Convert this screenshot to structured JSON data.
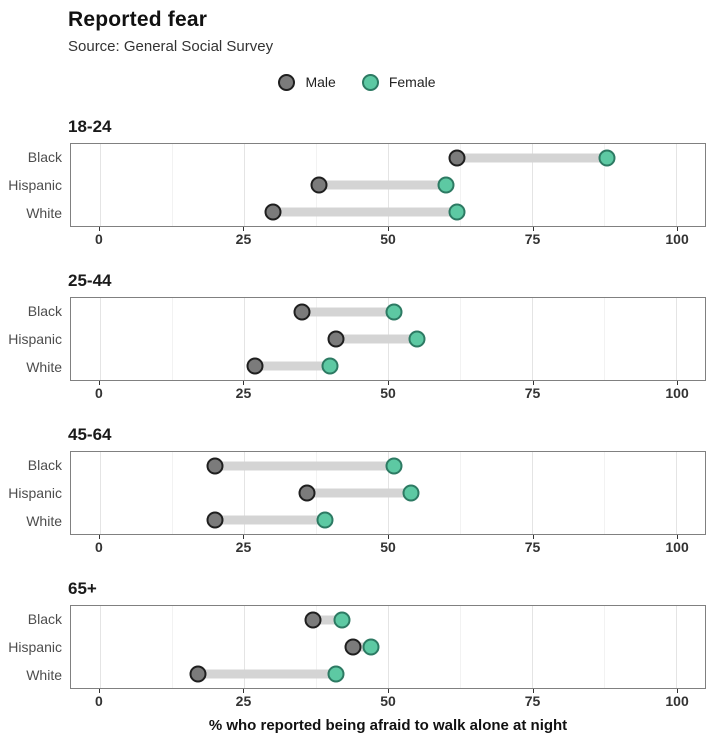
{
  "header": {
    "title": "Reported fear",
    "subtitle": "Source: General Social Survey"
  },
  "legend": {
    "items": [
      {
        "label": "Male",
        "color": "#7b7b7b",
        "border": "#1f1f1f"
      },
      {
        "label": "Female",
        "color": "#5dc9a3",
        "border": "#2d7a63"
      }
    ]
  },
  "chart_data": {
    "type": "dumbbell",
    "title": "Reported fear",
    "subtitle": "Source: General Social Survey",
    "xlabel": "% who reported being afraid to walk alone at night",
    "legend_entries": [
      "Male",
      "Female"
    ],
    "legend_position": "top-center",
    "colors": {
      "male": "#7b7b7b",
      "female": "#5dc9a3",
      "connector": "#d4d4d4"
    },
    "xlim": [
      -5,
      105
    ],
    "x_major_ticks": [
      0,
      25,
      50,
      75,
      100
    ],
    "x_minor_ticks": [
      12.5,
      37.5,
      62.5,
      87.5
    ],
    "grid": "vertical-only",
    "facet_variable": "age group",
    "panels": [
      {
        "age_group": "18-24",
        "rows": [
          {
            "race": "Black",
            "male": 62,
            "female": 88
          },
          {
            "race": "Hispanic",
            "male": 38,
            "female": 60
          },
          {
            "race": "White",
            "male": 30,
            "female": 62
          }
        ]
      },
      {
        "age_group": "25-44",
        "rows": [
          {
            "race": "Black",
            "male": 35,
            "female": 51
          },
          {
            "race": "Hispanic",
            "male": 41,
            "female": 55
          },
          {
            "race": "White",
            "male": 27,
            "female": 40
          }
        ]
      },
      {
        "age_group": "45-64",
        "rows": [
          {
            "race": "Black",
            "male": 20,
            "female": 51
          },
          {
            "race": "Hispanic",
            "male": 36,
            "female": 54
          },
          {
            "race": "White",
            "male": 20,
            "female": 39
          }
        ]
      },
      {
        "age_group": "65+",
        "rows": [
          {
            "race": "Black",
            "male": 37,
            "female": 42
          },
          {
            "race": "Hispanic",
            "male": 44,
            "female": 47
          },
          {
            "race": "White",
            "male": 17,
            "female": 41
          }
        ]
      }
    ]
  }
}
